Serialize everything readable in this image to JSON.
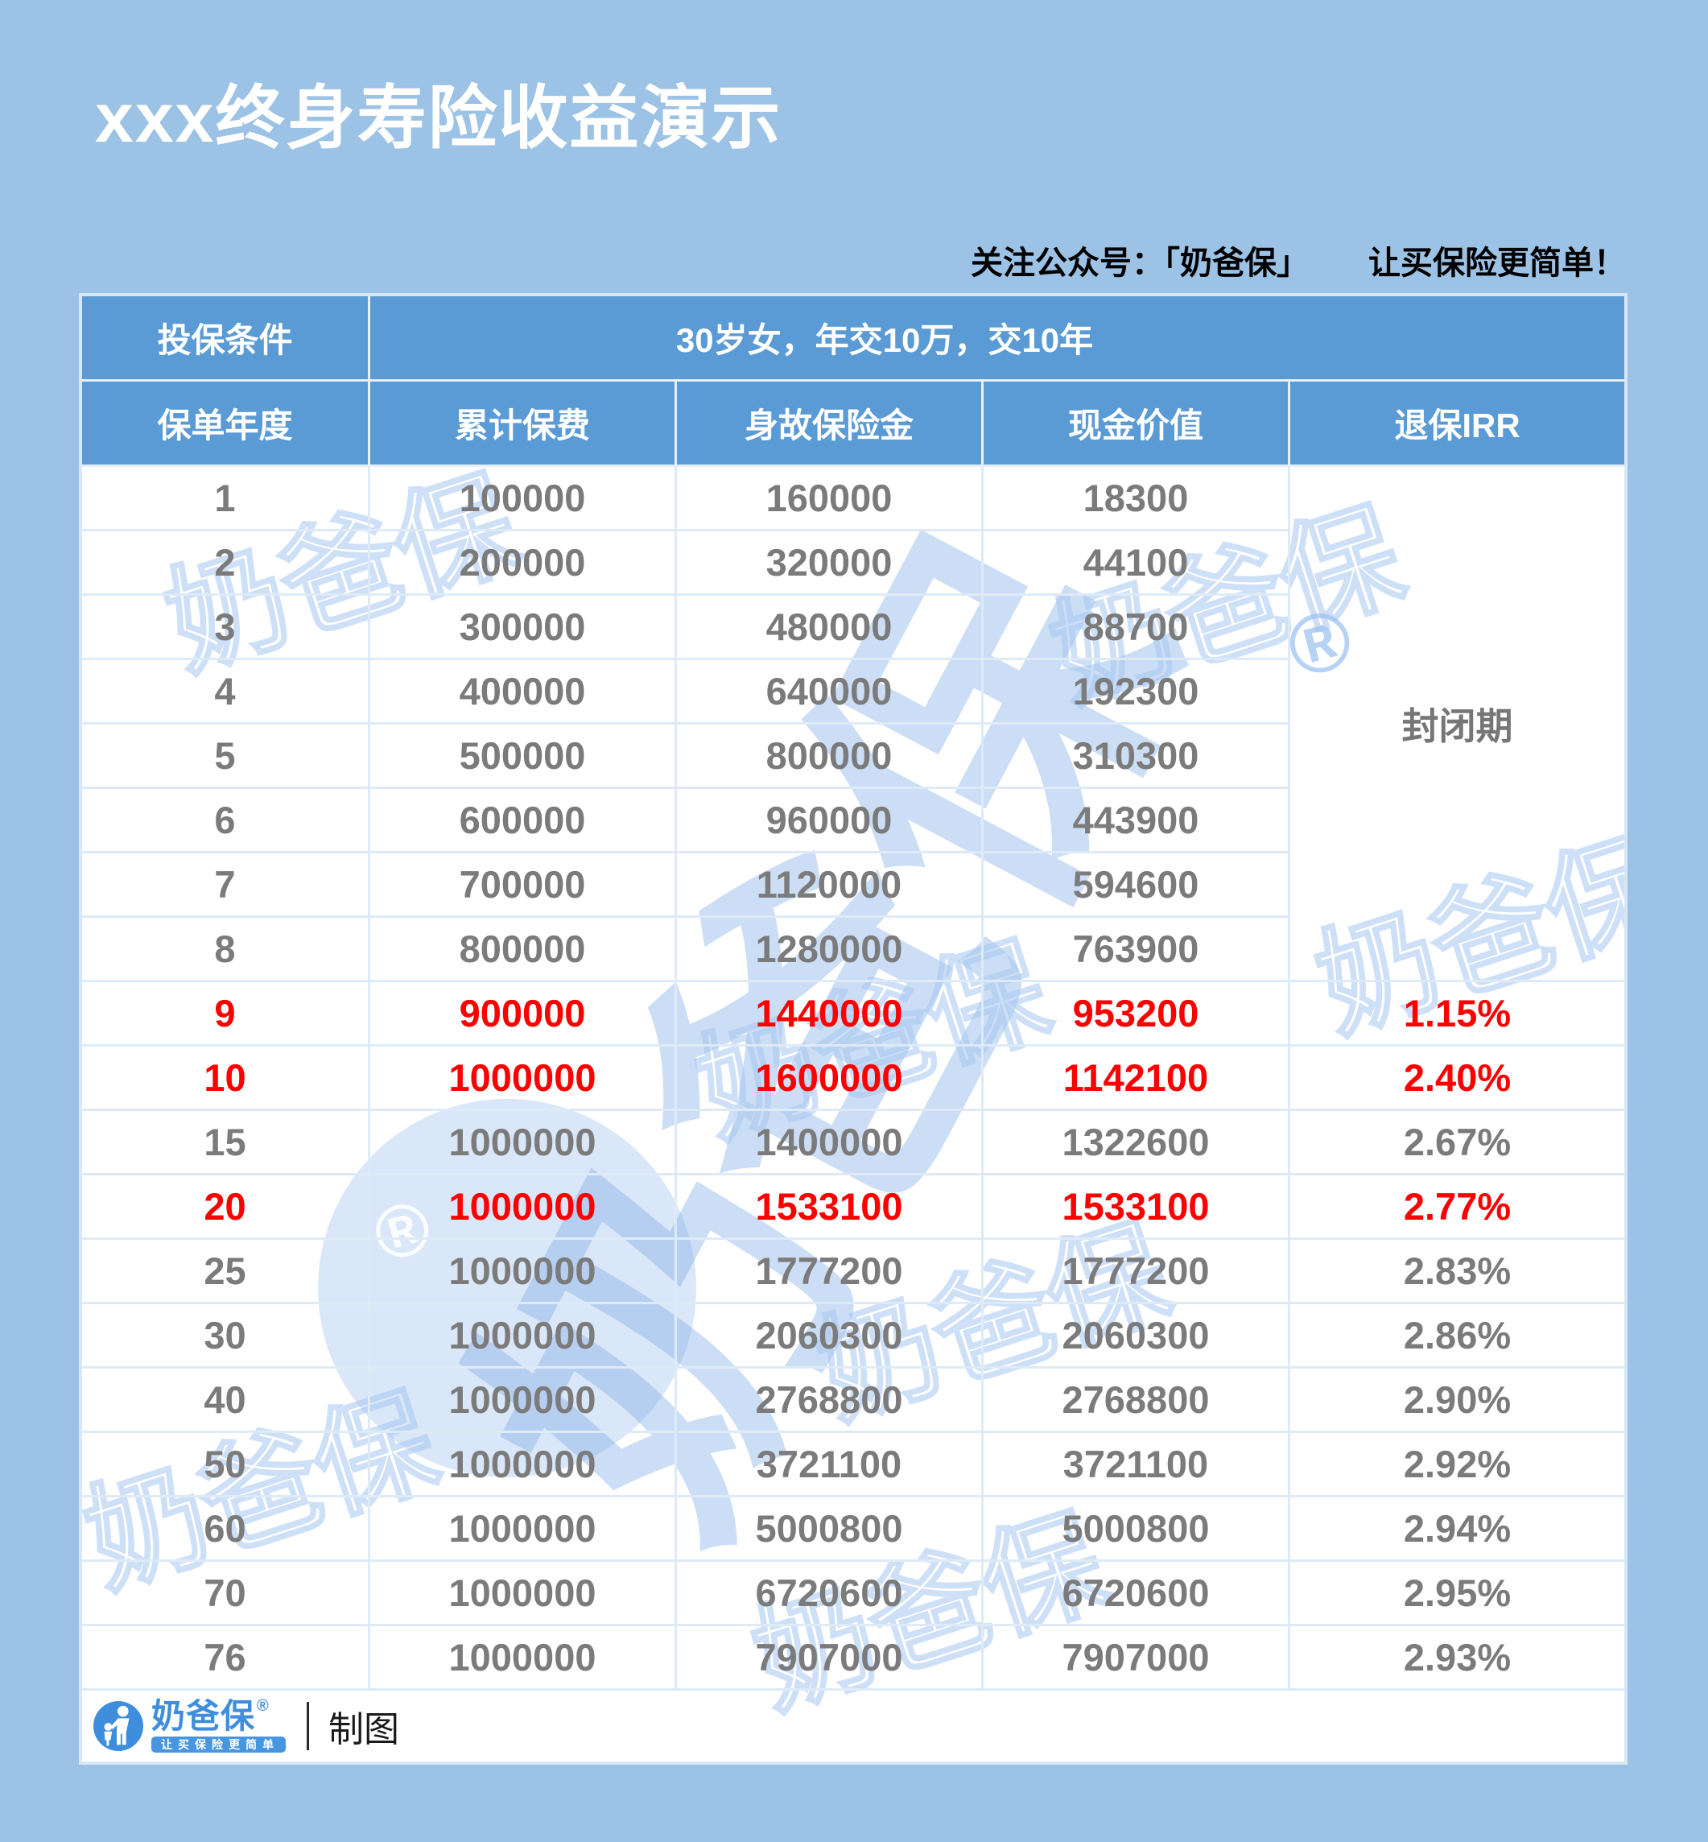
{
  "page": {
    "title": "xxx终身寿险收益演示",
    "subscribe": {
      "prefix": "关注公众号：",
      "brand": "「奶爸保」",
      "suffix": "让买保险更简单！"
    }
  },
  "table": {
    "condition_label": "投保条件",
    "condition_value": "30岁女，年交10万，交10年",
    "columns": [
      "保单年度",
      "累计保费",
      "身故保险金",
      "现金价值",
      "退保IRR"
    ],
    "closed_period_label": "封闭期",
    "rows": [
      {
        "year": "1",
        "premium": "100000",
        "death": "160000",
        "cash": "18300",
        "irr": null,
        "highlight": false
      },
      {
        "year": "2",
        "premium": "200000",
        "death": "320000",
        "cash": "44100",
        "irr": null,
        "highlight": false
      },
      {
        "year": "3",
        "premium": "300000",
        "death": "480000",
        "cash": "88700",
        "irr": null,
        "highlight": false
      },
      {
        "year": "4",
        "premium": "400000",
        "death": "640000",
        "cash": "192300",
        "irr": null,
        "highlight": false
      },
      {
        "year": "5",
        "premium": "500000",
        "death": "800000",
        "cash": "310300",
        "irr": null,
        "highlight": false
      },
      {
        "year": "6",
        "premium": "600000",
        "death": "960000",
        "cash": "443900",
        "irr": null,
        "highlight": false
      },
      {
        "year": "7",
        "premium": "700000",
        "death": "1120000",
        "cash": "594600",
        "irr": null,
        "highlight": false
      },
      {
        "year": "8",
        "premium": "800000",
        "death": "1280000",
        "cash": "763900",
        "irr": null,
        "highlight": false
      },
      {
        "year": "9",
        "premium": "900000",
        "death": "1440000",
        "cash": "953200",
        "irr": "1.15%",
        "highlight": true
      },
      {
        "year": "10",
        "premium": "1000000",
        "death": "1600000",
        "cash": "1142100",
        "irr": "2.40%",
        "highlight": true
      },
      {
        "year": "15",
        "premium": "1000000",
        "death": "1400000",
        "cash": "1322600",
        "irr": "2.67%",
        "highlight": false
      },
      {
        "year": "20",
        "premium": "1000000",
        "death": "1533100",
        "cash": "1533100",
        "irr": "2.77%",
        "highlight": true
      },
      {
        "year": "25",
        "premium": "1000000",
        "death": "1777200",
        "cash": "1777200",
        "irr": "2.83%",
        "highlight": false
      },
      {
        "year": "30",
        "premium": "1000000",
        "death": "2060300",
        "cash": "2060300",
        "irr": "2.86%",
        "highlight": false
      },
      {
        "year": "40",
        "premium": "1000000",
        "death": "2768800",
        "cash": "2768800",
        "irr": "2.90%",
        "highlight": false
      },
      {
        "year": "50",
        "premium": "1000000",
        "death": "3721100",
        "cash": "3721100",
        "irr": "2.92%",
        "highlight": false
      },
      {
        "year": "60",
        "premium": "1000000",
        "death": "5000800",
        "cash": "5000800",
        "irr": "2.94%",
        "highlight": false
      },
      {
        "year": "70",
        "premium": "1000000",
        "death": "6720600",
        "cash": "6720600",
        "irr": "2.95%",
        "highlight": false
      },
      {
        "year": "76",
        "premium": "1000000",
        "death": "7907000",
        "cash": "7907000",
        "irr": "2.93%",
        "highlight": false
      }
    ]
  },
  "footer": {
    "brand": "奶爸保",
    "registered_mark": "®",
    "slogan": "让买保险更简单",
    "credit": "制图"
  },
  "watermark": {
    "text": "奶爸保",
    "registered": "®"
  },
  "colors": {
    "background": "#9CC2E5",
    "header_blue": "#5B9BD5",
    "body_text_gray": "#7B7B7B",
    "highlight_red": "#FE0000",
    "brand_blue": "#3F8EDD",
    "border_light": "#DEEBF7",
    "title_white": "#FFFFFF"
  },
  "chart_data": {
    "type": "table",
    "title": "xxx终身寿险收益演示",
    "condition": {
      "投保条件": "30岁女，年交10万，交10年"
    },
    "columns": [
      "保单年度",
      "累计保费",
      "身故保险金",
      "现金价值",
      "退保IRR"
    ],
    "rows": [
      [
        1,
        100000,
        160000,
        18300,
        "封闭期"
      ],
      [
        2,
        200000,
        320000,
        44100,
        "封闭期"
      ],
      [
        3,
        300000,
        480000,
        88700,
        "封闭期"
      ],
      [
        4,
        400000,
        640000,
        192300,
        "封闭期"
      ],
      [
        5,
        500000,
        800000,
        310300,
        "封闭期"
      ],
      [
        6,
        600000,
        960000,
        443900,
        "封闭期"
      ],
      [
        7,
        700000,
        1120000,
        594600,
        "封闭期"
      ],
      [
        8,
        800000,
        1280000,
        763900,
        "封闭期"
      ],
      [
        9,
        900000,
        1440000,
        953200,
        "1.15%"
      ],
      [
        10,
        1000000,
        1600000,
        1142100,
        "2.40%"
      ],
      [
        15,
        1000000,
        1400000,
        1322600,
        "2.67%"
      ],
      [
        20,
        1000000,
        1533100,
        1533100,
        "2.77%"
      ],
      [
        25,
        1000000,
        1777200,
        1777200,
        "2.83%"
      ],
      [
        30,
        1000000,
        2060300,
        2060300,
        "2.86%"
      ],
      [
        40,
        1000000,
        2768800,
        2768800,
        "2.90%"
      ],
      [
        50,
        1000000,
        3721100,
        3721100,
        "2.92%"
      ],
      [
        60,
        1000000,
        5000800,
        5000800,
        "2.94%"
      ],
      [
        70,
        1000000,
        6720600,
        6720600,
        "2.95%"
      ],
      [
        76,
        1000000,
        7907000,
        7907000,
        "2.93%"
      ]
    ],
    "highlighted_years": [
      9,
      10,
      20
    ],
    "legend_position": "none",
    "grid": true
  }
}
